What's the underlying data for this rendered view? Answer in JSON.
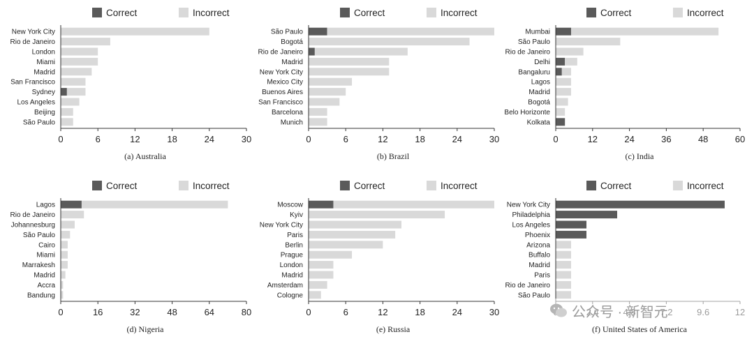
{
  "colors": {
    "correct": "#5a5a5a",
    "incorrect": "#d9d9d9",
    "axis": "#333333"
  },
  "legend": {
    "correct": "Correct",
    "incorrect": "Incorrect"
  },
  "watermark": {
    "text": "公众号 · 新智元",
    "icon": "wechat-icon"
  },
  "chart_data": [
    {
      "type": "bar",
      "orientation": "horizontal",
      "stacked": true,
      "caption": "(a) Australia",
      "categories": [
        "New York City",
        "Rio de Janeiro",
        "London",
        "Miami",
        "Madrid",
        "San Francisco",
        "Sydney",
        "Los Angeles",
        "Beijing",
        "São Paulo"
      ],
      "series": [
        {
          "name": "Correct",
          "values": [
            0,
            0,
            0,
            0,
            0,
            0,
            1,
            0,
            0,
            0
          ]
        },
        {
          "name": "Incorrect",
          "values": [
            24,
            8,
            6,
            6,
            5,
            4,
            3,
            3,
            2,
            2
          ]
        }
      ],
      "xlim": [
        0,
        30
      ],
      "ticks": [
        "0",
        "6",
        "12",
        "18",
        "24",
        "30"
      ]
    },
    {
      "type": "bar",
      "orientation": "horizontal",
      "stacked": true,
      "caption": "(b) Brazil",
      "categories": [
        "São Paulo",
        "Bogotá",
        "Rio de Janeiro",
        "Madrid",
        "New York City",
        "Mexico City",
        "Buenos Aires",
        "San Francisco",
        "Barcelona",
        "Munich"
      ],
      "series": [
        {
          "name": "Correct",
          "values": [
            3,
            0,
            1,
            0,
            0,
            0,
            0,
            0,
            0,
            0
          ]
        },
        {
          "name": "Incorrect",
          "values": [
            27,
            26,
            15,
            13,
            13,
            7,
            6,
            5,
            3,
            3
          ]
        }
      ],
      "xlim": [
        0,
        30
      ],
      "ticks": [
        "0",
        "6",
        "12",
        "18",
        "24",
        "30"
      ]
    },
    {
      "type": "bar",
      "orientation": "horizontal",
      "stacked": true,
      "caption": "(c) India",
      "categories": [
        "Mumbai",
        "São Paulo",
        "Rio de Janeiro",
        "Delhi",
        "Bangaluru",
        "Lagos",
        "Madrid",
        "Bogotá",
        "Belo Horizonte",
        "Kolkata"
      ],
      "series": [
        {
          "name": "Correct",
          "values": [
            5,
            0,
            0,
            3,
            2,
            0,
            0,
            0,
            0,
            3
          ]
        },
        {
          "name": "Incorrect",
          "values": [
            48,
            21,
            9,
            4,
            3,
            5,
            5,
            4,
            3,
            0
          ]
        }
      ],
      "xlim": [
        0,
        60
      ],
      "ticks": [
        "0",
        "12",
        "24",
        "36",
        "48",
        "60"
      ]
    },
    {
      "type": "bar",
      "orientation": "horizontal",
      "stacked": true,
      "caption": "(d) Nigeria",
      "categories": [
        "Lagos",
        "Rio de Janeiro",
        "Johannesburg",
        "São Paulo",
        "Cairo",
        "Miami",
        "Marrakesh",
        "Madrid",
        "Accra",
        "Bandung"
      ],
      "series": [
        {
          "name": "Correct",
          "values": [
            9,
            0,
            0,
            0,
            0,
            0,
            0,
            0,
            0,
            0
          ]
        },
        {
          "name": "Incorrect",
          "values": [
            63,
            10,
            6,
            4,
            3,
            3,
            3,
            2,
            1,
            1
          ]
        }
      ],
      "xlim": [
        0,
        80
      ],
      "ticks": [
        "0",
        "16",
        "32",
        "48",
        "64",
        "80"
      ]
    },
    {
      "type": "bar",
      "orientation": "horizontal",
      "stacked": true,
      "caption": "(e) Russia",
      "categories": [
        "Moscow",
        "Kyiv",
        "New York City",
        "Paris",
        "Berlin",
        "Prague",
        "London",
        "Madrid",
        "Amsterdam",
        "Cologne"
      ],
      "series": [
        {
          "name": "Correct",
          "values": [
            4,
            0,
            0,
            0,
            0,
            0,
            0,
            0,
            0,
            0
          ]
        },
        {
          "name": "Incorrect",
          "values": [
            26,
            22,
            15,
            14,
            12,
            7,
            4,
            4,
            3,
            2
          ]
        }
      ],
      "xlim": [
        0,
        30
      ],
      "ticks": [
        "0",
        "6",
        "12",
        "18",
        "24",
        "30"
      ]
    },
    {
      "type": "bar",
      "orientation": "horizontal",
      "stacked": true,
      "caption": "(f) United States of America",
      "categories": [
        "New York City",
        "Philadelphia",
        "Los Angeles",
        "Phoenix",
        "Arizona",
        "Buffalo",
        "Madrid",
        "Paris",
        "Rio de Janeiro",
        "São Paulo"
      ],
      "series": [
        {
          "name": "Correct",
          "values": [
            11,
            4,
            2,
            2,
            0,
            0,
            0,
            0,
            0,
            0
          ]
        },
        {
          "name": "Incorrect",
          "values": [
            0,
            0,
            0,
            0,
            1,
            1,
            1,
            1,
            1,
            1
          ]
        }
      ],
      "xlim": [
        0,
        12
      ],
      "ticks": [
        "0",
        "2.4",
        "4.8",
        "7.2",
        "9.6",
        "12"
      ]
    }
  ]
}
